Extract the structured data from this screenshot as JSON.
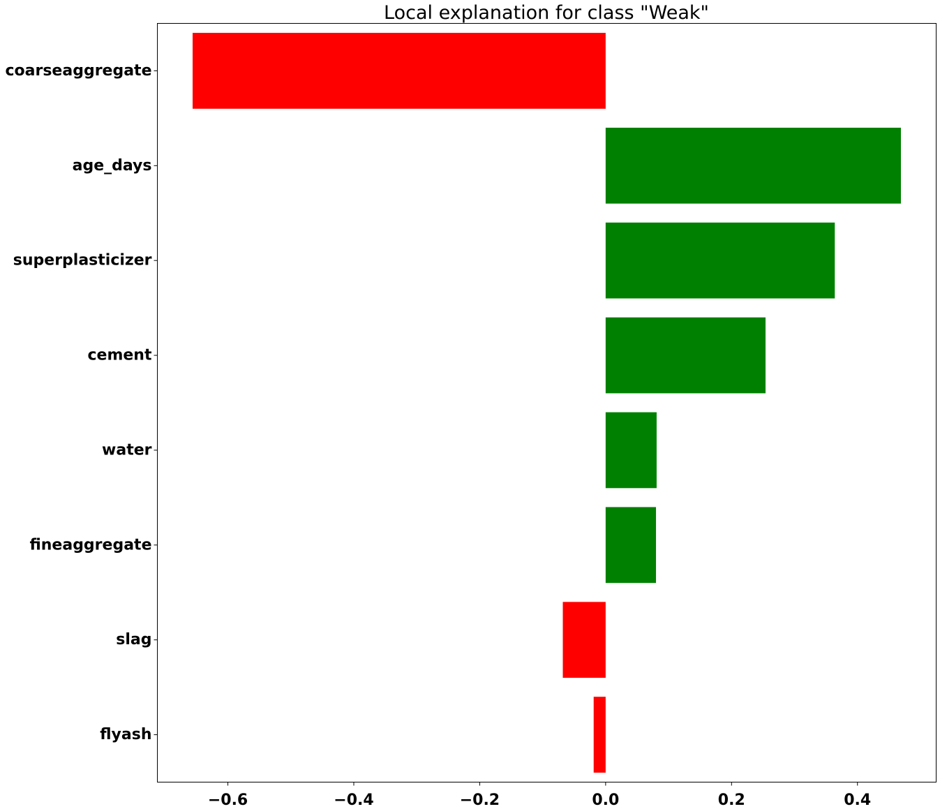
{
  "chart_data": {
    "type": "bar",
    "orientation": "horizontal",
    "title": "Local explanation for class \"Weak\"",
    "xlabel": "",
    "ylabel": "",
    "categories": [
      "coarseaggregate",
      "age_days",
      "superplasticizer",
      "cement",
      "water",
      "fineaggregate",
      "slag",
      "flyash"
    ],
    "values": [
      -0.656,
      0.469,
      0.364,
      0.254,
      0.081,
      0.08,
      -0.068,
      -0.019
    ],
    "xlim": [
      -0.712,
      0.525
    ],
    "xticks": [
      -0.6,
      -0.4,
      -0.2,
      0.0,
      0.2,
      0.4
    ],
    "xtick_labels": [
      "−0.6",
      "−0.4",
      "−0.2",
      "0.0",
      "0.2",
      "0.4"
    ],
    "colors": {
      "positive": "#008000",
      "negative": "#ff0000"
    },
    "grid": false,
    "legend": "none"
  }
}
